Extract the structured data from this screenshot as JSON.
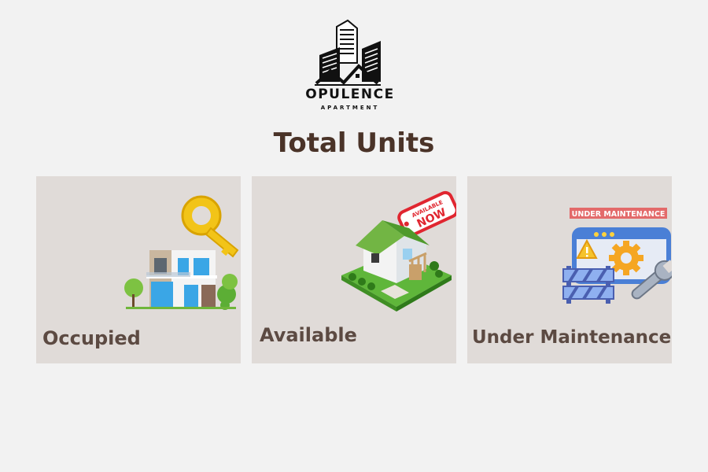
{
  "brand": {
    "name": "OPULENCE",
    "tagline": "APARTMENT"
  },
  "page": {
    "title": "Total Units"
  },
  "cards": [
    {
      "label": "Occupied",
      "icon": "house-with-key-icon"
    },
    {
      "label": "Available",
      "icon": "house-available-now-icon",
      "badge_line1": "AVAILABLE",
      "badge_line2": "NOW"
    },
    {
      "label": "Under Maintenance",
      "icon": "maintenance-tools-icon",
      "banner": "UNDER MAINTENANCE"
    }
  ],
  "colors": {
    "background": "#f2f2f2",
    "card": "#e0dbd8",
    "title": "#4a3328",
    "label": "#5c4a42"
  }
}
